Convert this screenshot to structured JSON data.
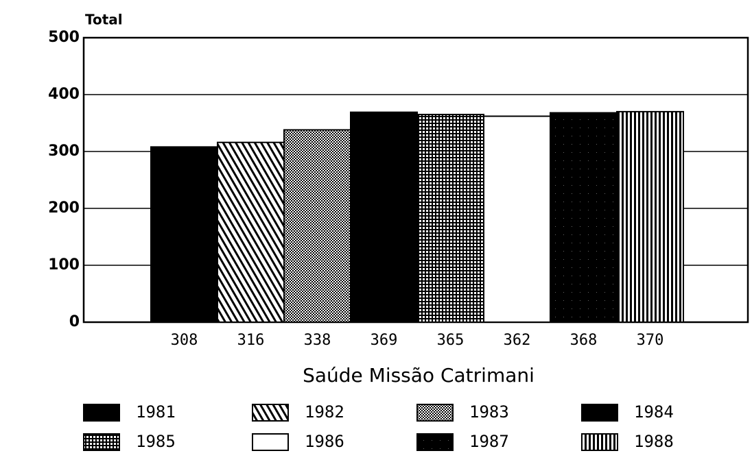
{
  "chart_data": {
    "type": "bar",
    "y_label": "Total",
    "x_label": "Saúde Missão Catrimani",
    "categories": [
      null
    ],
    "series": [
      {
        "name": "1981",
        "color": "#000000",
        "pattern": "solid",
        "values": [
          308
        ]
      },
      {
        "name": "1982",
        "color": "#000000",
        "pattern": "diagonal",
        "values": [
          316
        ]
      },
      {
        "name": "1983",
        "color": "#000000",
        "pattern": "dots",
        "values": [
          338
        ]
      },
      {
        "name": "1984",
        "color": "#000000",
        "pattern": "solid",
        "values": [
          369
        ]
      },
      {
        "name": "1985",
        "color": "#000000",
        "pattern": "grid",
        "values": [
          365
        ]
      },
      {
        "name": "1986",
        "color": "#000000",
        "pattern": "none",
        "values": [
          362
        ]
      },
      {
        "name": "1987",
        "color": "#000000",
        "pattern": "speckle",
        "values": [
          368
        ]
      },
      {
        "name": "1988",
        "color": "#000000",
        "pattern": "vertical",
        "values": [
          370
        ]
      }
    ],
    "ylim": [
      0,
      500
    ],
    "yticks": [
      0,
      100,
      200,
      300,
      400,
      500
    ],
    "grid": true,
    "legend": "bottom"
  }
}
